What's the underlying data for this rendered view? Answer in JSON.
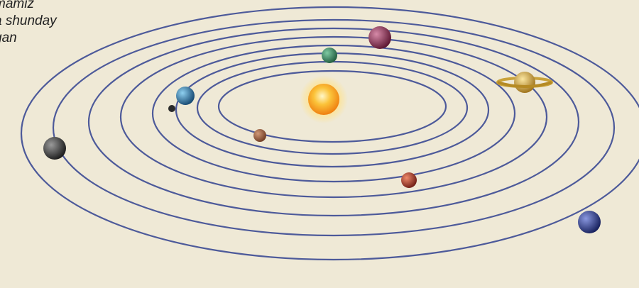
{
  "caption": {
    "lines": [
      "mamiz",
      "a shunday",
      "gan"
    ],
    "color": "#222222"
  },
  "colors": {
    "background": "#efe9d6",
    "orbit": "#4d5a9a",
    "sun": "#f6a91c"
  },
  "diagram": {
    "center_body": "sun",
    "orbit_count": 8,
    "planets": [
      {
        "name": "mercury",
        "color": "#8a4a2e"
      },
      {
        "name": "venus",
        "color": "#2f7a55"
      },
      {
        "name": "earth",
        "color": "#1f6da0"
      },
      {
        "name": "mars",
        "color": "#a8362a"
      },
      {
        "name": "jupiter",
        "color": "#8b2b4b"
      },
      {
        "name": "saturn",
        "color": "#c9a23a"
      },
      {
        "name": "uranus",
        "color": "#3a3a3a"
      },
      {
        "name": "neptune",
        "color": "#2a3a8a"
      }
    ],
    "moon": {
      "name": "moon",
      "color": "#2a2a2a"
    }
  }
}
